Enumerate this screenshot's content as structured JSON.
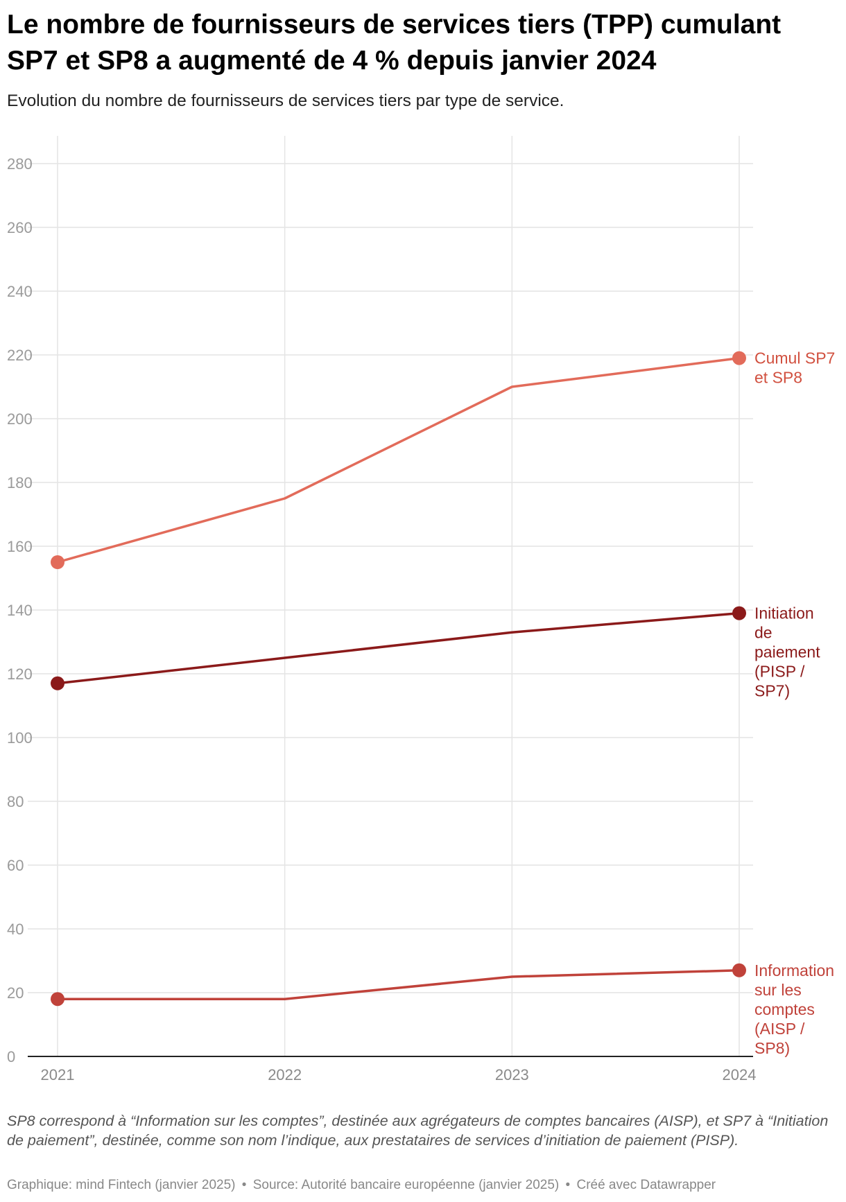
{
  "title": "Le nombre de fournisseurs de services tiers (TPP) cumulant SP7 et SP8 a augmenté de 4 % depuis janvier 2024",
  "subtitle": "Evolution du nombre de fournisseurs de services tiers par type de service.",
  "notes": "SP8 correspond à “Information sur les comptes”, destinée aux agrégateurs de comptes bancaires (AISP), et SP7 à “Initiation de paiement”, destinée, comme son nom l’indique, aux prestataires de services d’initiation de paiement (PISP).",
  "footer": {
    "graphic": "Graphique: mind Fintech (janvier 2025)",
    "source": "Source: Autorité bancaire européenne (janvier 2025)",
    "created": "Créé avec Datawrapper",
    "separator": "•"
  },
  "chart_data": {
    "type": "line",
    "x": [
      "2021",
      "2022",
      "2023",
      "2024"
    ],
    "ylim": [
      0,
      280
    ],
    "yticks": [
      0,
      20,
      40,
      60,
      80,
      100,
      120,
      140,
      160,
      180,
      200,
      220,
      240,
      260,
      280
    ],
    "grid": true,
    "legend": "direct labels at line ends (right)",
    "series": [
      {
        "name": "Cumul SP7 et SP8",
        "label_lines": [
          "Cumul SP7",
          "et SP8"
        ],
        "values": [
          155,
          175,
          210,
          219
        ],
        "color": "#e26b5a",
        "label_color": "#d1503f"
      },
      {
        "name": "Initiation de paiement (PISP / SP7)",
        "label_lines": [
          "Initiation",
          "de",
          "paiement",
          "(PISP /",
          "SP7)"
        ],
        "values": [
          117,
          125,
          133,
          139
        ],
        "color": "#8b1a1a",
        "label_color": "#8b1a1a"
      },
      {
        "name": "Information sur les comptes (AISP / SP8)",
        "label_lines": [
          "Information",
          "sur les",
          "comptes",
          "(AISP /",
          "SP8)"
        ],
        "values": [
          18,
          18,
          25,
          27
        ],
        "color": "#c0423a",
        "label_color": "#c0423a"
      }
    ]
  }
}
